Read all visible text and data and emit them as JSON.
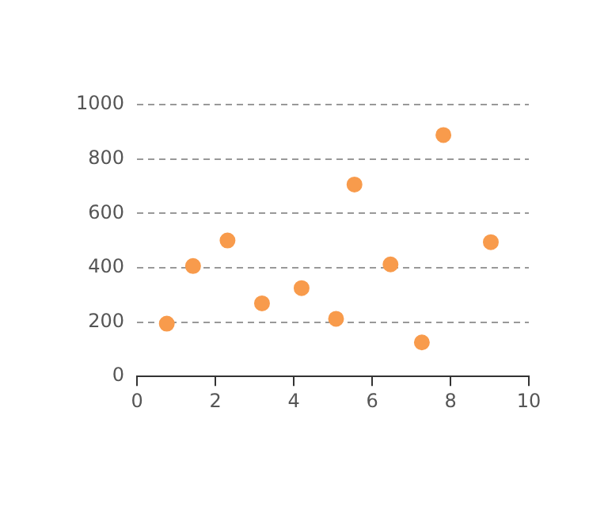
{
  "chart_data": {
    "type": "scatter",
    "x": [
      0.76,
      1.43,
      2.31,
      3.19,
      4.2,
      5.08,
      5.55,
      6.47,
      7.27,
      7.82,
      9.03
    ],
    "values": [
      194,
      406,
      500,
      269,
      325,
      212,
      706,
      412,
      125,
      888,
      494
    ],
    "color": "#f89b4c",
    "xlim": [
      0,
      10
    ],
    "xticks": [
      0,
      2,
      4,
      6,
      8,
      10
    ],
    "ylim": [
      0,
      1000
    ],
    "yticks": [
      0,
      200,
      400,
      600,
      800,
      1000
    ],
    "grid": "y",
    "marker": "circle"
  }
}
